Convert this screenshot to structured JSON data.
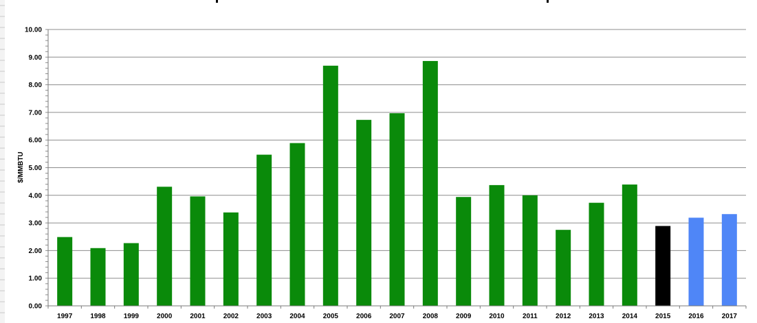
{
  "chart_data": {
    "type": "bar",
    "title": "",
    "xlabel": "",
    "ylabel": "$/MMBTU",
    "ylim": [
      0,
      10
    ],
    "y_ticks": [
      "0.00",
      "1.00",
      "2.00",
      "3.00",
      "4.00",
      "5.00",
      "6.00",
      "7.00",
      "8.00",
      "9.00",
      "10.00"
    ],
    "grid": true,
    "legend": "none",
    "categories": [
      "1997",
      "1998",
      "1999",
      "2000",
      "2001",
      "2002",
      "2003",
      "2004",
      "2005",
      "2006",
      "2007",
      "2008",
      "2009",
      "2010",
      "2011",
      "2012",
      "2013",
      "2014",
      "2015",
      "2016",
      "2017"
    ],
    "values": [
      2.49,
      2.09,
      2.27,
      4.31,
      3.96,
      3.38,
      5.47,
      5.89,
      8.69,
      6.73,
      6.97,
      8.86,
      3.94,
      4.37,
      4.0,
      2.75,
      3.73,
      4.39,
      2.89,
      3.19,
      3.32
    ],
    "bar_colors": [
      "#0a8a0a",
      "#0a8a0a",
      "#0a8a0a",
      "#0a8a0a",
      "#0a8a0a",
      "#0a8a0a",
      "#0a8a0a",
      "#0a8a0a",
      "#0a8a0a",
      "#0a8a0a",
      "#0a8a0a",
      "#0a8a0a",
      "#0a8a0a",
      "#0a8a0a",
      "#0a8a0a",
      "#0a8a0a",
      "#0a8a0a",
      "#0a8a0a",
      "#000000",
      "#4f86f7",
      "#4f86f7"
    ]
  }
}
